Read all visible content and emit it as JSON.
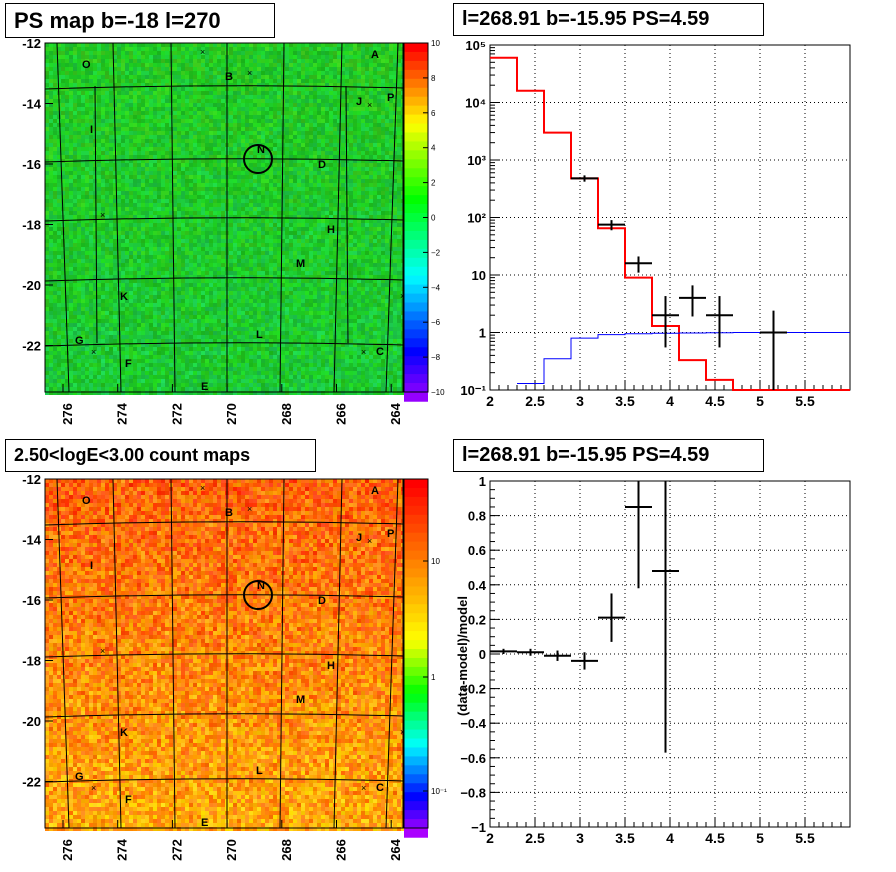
{
  "panels": {
    "map_top": {
      "title": "PS map b=-18 l=270",
      "y_ticks": [
        "-12",
        "-14",
        "-16",
        "-18",
        "-20",
        "-22"
      ],
      "x_ticks": [
        "276",
        "274",
        "272",
        "270",
        "268",
        "266",
        "264"
      ],
      "colorbar_ticks": [
        "10",
        "8",
        "6",
        "4",
        "2",
        "0",
        "−2",
        "−4",
        "−6",
        "−8",
        "−10"
      ],
      "source_labels": [
        "O",
        "A",
        "B",
        "J",
        "P",
        "I",
        "N",
        "D",
        "H",
        "M",
        "K",
        "G",
        "L",
        "C",
        "F",
        "E"
      ]
    },
    "map_bottom": {
      "title": "2.50<logE<3.00 count maps",
      "y_ticks": [
        "-12",
        "-14",
        "-16",
        "-18",
        "-20",
        "-22"
      ],
      "x_ticks": [
        "276",
        "274",
        "272",
        "270",
        "268",
        "266",
        "264"
      ],
      "colorbar_ticks": [
        "10",
        "1",
        "10⁻¹"
      ],
      "source_labels": [
        "O",
        "A",
        "B",
        "J",
        "P",
        "I",
        "N",
        "D",
        "H",
        "M",
        "K",
        "G",
        "L",
        "C",
        "F",
        "E"
      ]
    },
    "spectrum": {
      "title": "l=268.91 b=-15.95 PS=4.59"
    },
    "residual": {
      "title": "l=268.91 b=-15.95 PS=4.59"
    }
  },
  "chart_data": [
    {
      "type": "heatmap",
      "title": "PS map b=-18 l=270",
      "xlabel": "",
      "ylabel": "",
      "xlim": [
        263.6,
        276.6
      ],
      "ylim": [
        -23.8,
        -12
      ],
      "x_reversed": true,
      "zlim": [
        -10,
        10
      ],
      "colorbar": "green dominated, values near 0 to 2",
      "circle_source": {
        "label": "N",
        "l": 268.91,
        "b": -15.95
      }
    },
    {
      "type": "line",
      "title": "l=268.91 b=-15.95 PS=4.59",
      "xlabel": "",
      "ylabel": "",
      "xlim": [
        2,
        6
      ],
      "ylim": [
        0.1,
        100000
      ],
      "yscale": "log",
      "grid": true,
      "x_ticks": [
        "2",
        "2.5",
        "3",
        "3.5",
        "4",
        "4.5",
        "5",
        "5.5"
      ],
      "y_ticks": [
        "10⁻¹",
        "1",
        "10",
        "10²",
        "10³",
        "10⁴",
        "10⁵"
      ],
      "series": [
        {
          "kind": "step",
          "color": "#ff0000",
          "edges": [
            2,
            2.3,
            2.6,
            2.9,
            3.2,
            3.5,
            3.8,
            4.1,
            4.4,
            4.7,
            5,
            6
          ],
          "values": [
            60000,
            16000,
            3000,
            480,
            65,
            9,
            1.3,
            0.33,
            0.15,
            0.1,
            0.1
          ]
        },
        {
          "kind": "step",
          "color": "#0000ff",
          "edges": [
            2.3,
            2.6,
            2.9,
            3.2,
            3.5,
            3.8,
            4.1,
            4.4,
            4.7,
            5,
            6
          ],
          "values": [
            0.13,
            0.35,
            0.8,
            0.92,
            0.95,
            0.97,
            0.98,
            0.99,
            1.0,
            1.0
          ]
        },
        {
          "kind": "points",
          "color": "#000000",
          "points": [
            {
              "x": 3.05,
              "xerr": 0.15,
              "y": 480,
              "ylo": 420,
              "yhi": 540
            },
            {
              "x": 3.35,
              "xerr": 0.15,
              "y": 75,
              "ylo": 60,
              "yhi": 90
            },
            {
              "x": 3.65,
              "xerr": 0.15,
              "y": 16,
              "ylo": 11,
              "yhi": 21
            },
            {
              "x": 3.95,
              "xerr": 0.15,
              "y": 2,
              "ylo": 0.55,
              "yhi": 4.3
            },
            {
              "x": 4.25,
              "xerr": 0.15,
              "y": 4,
              "ylo": 1.9,
              "yhi": 6.6
            },
            {
              "x": 4.55,
              "xerr": 0.15,
              "y": 2,
              "ylo": 0.55,
              "yhi": 4.3
            },
            {
              "x": 5.15,
              "xerr": 0.15,
              "y": 1,
              "ylo": 0.1,
              "yhi": 2.4
            }
          ]
        }
      ]
    },
    {
      "type": "scatter",
      "title": "l=268.91 b=-15.95 PS=4.59",
      "xlabel": "",
      "ylabel": "(data-model)/model",
      "xlim": [
        2,
        6
      ],
      "ylim": [
        -1,
        1
      ],
      "grid": true,
      "x_ticks": [
        "2",
        "2.5",
        "3",
        "3.5",
        "4",
        "4.5",
        "5",
        "5.5"
      ],
      "y_ticks": [
        "−1",
        "−0.8",
        "−0.6",
        "−0.4",
        "−0.2",
        "0",
        "0.2",
        "0.4",
        "0.6",
        "0.8",
        "1"
      ],
      "points": [
        {
          "x": 2.15,
          "xerr": 0.15,
          "y": 0.015,
          "ylo": 0.0,
          "yhi": 0.03
        },
        {
          "x": 2.45,
          "xerr": 0.15,
          "y": 0.01,
          "ylo": -0.01,
          "yhi": 0.03
        },
        {
          "x": 2.75,
          "xerr": 0.15,
          "y": -0.01,
          "ylo": -0.04,
          "yhi": 0.02
        },
        {
          "x": 3.05,
          "xerr": 0.15,
          "y": -0.04,
          "ylo": -0.09,
          "yhi": 0.01
        },
        {
          "x": 3.35,
          "xerr": 0.15,
          "y": 0.21,
          "ylo": 0.07,
          "yhi": 0.35
        },
        {
          "x": 3.65,
          "xerr": 0.15,
          "y": 0.85,
          "ylo": 0.38,
          "yhi": 1.0
        },
        {
          "x": 3.95,
          "xerr": 0.15,
          "y": 0.48,
          "ylo": -0.57,
          "yhi": 1.0
        }
      ]
    }
  ]
}
